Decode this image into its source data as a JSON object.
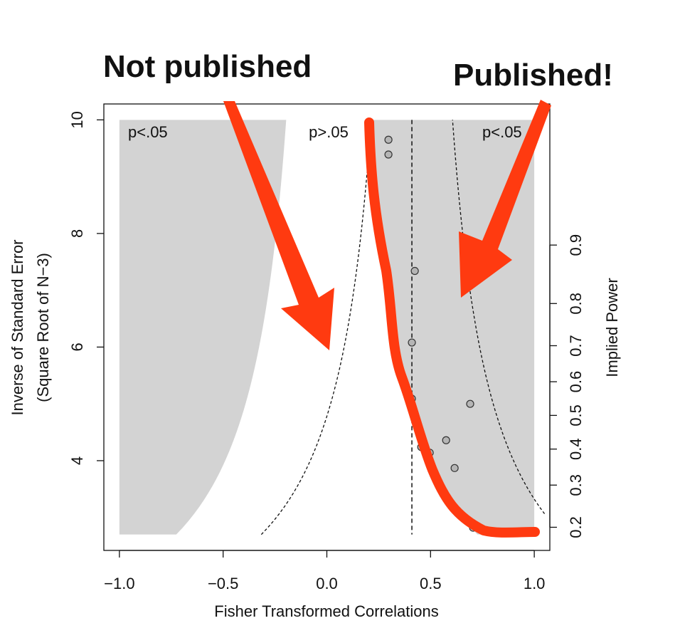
{
  "chart_data": {
    "type": "scatter",
    "annotations": [
      "Not published",
      "Published!"
    ],
    "region_labels": [
      "p<.05",
      "p>.05",
      "p<.05"
    ],
    "xlabel": "Fisher Transformed Correlations",
    "ylabel": [
      "Inverse of Standard Error",
      "(Square Root of N−3)"
    ],
    "y2label": "Implied Power",
    "x": [
      0.297,
      0.297,
      0.424,
      0.41,
      0.41,
      0.691,
      0.575,
      0.455,
      0.496,
      0.616,
      0.705
    ],
    "values": [
      9.65,
      9.39,
      7.34,
      6.08,
      5.09,
      5.0,
      4.36,
      4.24,
      4.14,
      3.87,
      2.82
    ],
    "point_color": "#b5b5b5",
    "region_color": "#d3d3d3",
    "reference_x": 0.41,
    "shaded_ylim": [
      2.7,
      10
    ],
    "xlim": [
      -1.075,
      1.075
    ],
    "ylim": [
      2.42,
      10.28
    ],
    "xticks": [
      {
        "value": -1,
        "label": "−1.0"
      },
      {
        "value": -0.5,
        "label": "−0.5"
      },
      {
        "value": 0,
        "label": "0.0"
      },
      {
        "value": 0.5,
        "label": "0.5"
      },
      {
        "value": 1,
        "label": "1.0"
      }
    ],
    "yticks": [
      4,
      6,
      8,
      10
    ],
    "y2ticks": [
      0.2,
      0.3,
      0.4,
      0.5,
      0.6,
      0.7,
      0.8,
      0.9
    ]
  }
}
